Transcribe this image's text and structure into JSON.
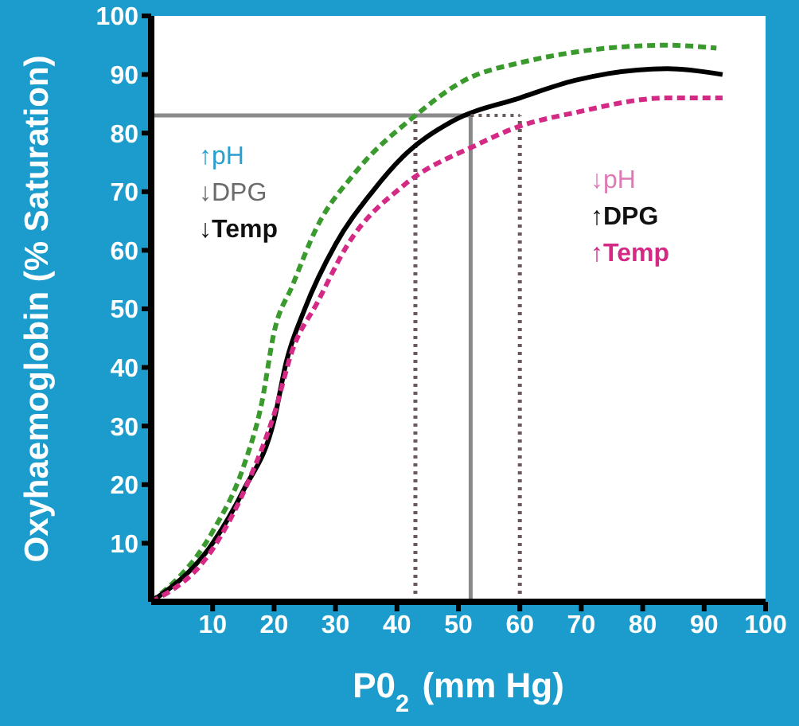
{
  "chart_data": {
    "type": "line",
    "xlabel": "P0$_{2}$ (mm Hg)",
    "ylabel": "Oxyhaemoglobin  (% Saturation)",
    "xlim": [
      0,
      100
    ],
    "xticks": [
      10,
      20,
      30,
      40,
      50,
      60,
      70,
      80,
      90,
      100
    ],
    "ylim": [
      0,
      100
    ],
    "yticks": [
      10,
      20,
      30,
      40,
      50,
      60,
      70,
      80,
      90,
      100
    ],
    "grid": false,
    "legend": false,
    "marker": "none",
    "series": [
      {
        "color": "#3a9a2e",
        "line_style": "dashed",
        "x": [
          0,
          10,
          15,
          18,
          20,
          23,
          27,
          33,
          43,
          51,
          60,
          84,
          92
        ],
        "values": [
          0,
          12,
          23,
          34,
          46,
          54,
          64,
          73,
          83,
          89,
          92,
          95,
          94.5
        ]
      },
      {
        "color": "#000000",
        "line_style": "solid",
        "x": [
          0,
          10,
          15,
          20,
          22,
          25,
          30,
          36,
          41,
          49,
          60,
          69,
          84,
          93
        ],
        "values": [
          0,
          10,
          19,
          31,
          41,
          50,
          61,
          70,
          76,
          82,
          86,
          89,
          91,
          90
        ]
      },
      {
        "color": "#d42a86",
        "line_style": "dashed",
        "x": [
          0,
          10,
          16,
          20,
          23,
          27,
          32,
          41,
          53,
          59.5,
          69,
          84,
          93
        ],
        "values": [
          0,
          9,
          21,
          32,
          43,
          51,
          61,
          71,
          78,
          81,
          83.5,
          86,
          86
        ]
      },
      {
        "type": "line",
        "color": "#6a5a5a",
        "line_style": "dotted",
        "x": [
          52,
          60
        ],
        "values": [
          83,
          83
        ]
      }
    ],
    "ref_lines": [
      {
        "axis": "y",
        "value": 83,
        "color": "#8a8a8a",
        "line_style": "solid"
      },
      {
        "axis": "x",
        "value": 52,
        "color": "#8a8a8a",
        "line_style": "solid"
      },
      {
        "axis": "x",
        "value": 43,
        "color": "#6a5a5a",
        "line_style": "dotted"
      },
      {
        "axis": "x",
        "value": 60,
        "color": "#6a5a5a",
        "line_style": "dotted"
      }
    ],
    "annotations": [
      "↑pH",
      "↓DPG",
      "↓Temp",
      "↓pH",
      "↑DPG",
      "↑Temp"
    ]
  }
}
